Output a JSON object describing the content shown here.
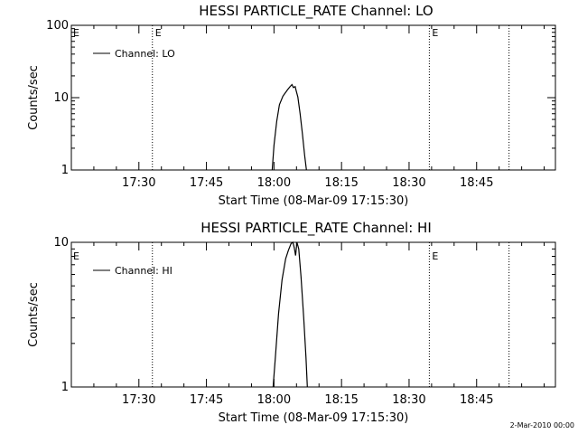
{
  "footer_text": "2-Mar-2010 00:00",
  "chart_data": [
    {
      "type": "line",
      "title": "HESSI PARTICLE_RATE Channel: LO",
      "xlabel": "Start Time (08-Mar-09 17:15:30)",
      "ylabel": "Counts/sec",
      "yscale": "log",
      "ylim": [
        1,
        100
      ],
      "ytick_values": [
        1,
        10,
        100
      ],
      "ytick_labels": [
        "1",
        "10",
        "100"
      ],
      "xlim_min_after_start": [
        0,
        107.5
      ],
      "xtick_min_after_start": [
        15,
        30,
        45,
        60,
        75,
        90
      ],
      "xtick_labels": [
        "17:30",
        "17:45",
        "18:00",
        "18:15",
        "18:30",
        "18:45"
      ],
      "legend": {
        "label": "Channel: LO",
        "placement": "top-left"
      },
      "series": [
        {
          "name": "Channel: LO",
          "x": [
            44.6,
            45.0,
            45.6,
            46.2,
            47.0,
            48.0,
            48.6,
            49.0,
            49.3,
            49.7,
            50.0,
            50.3,
            50.8,
            51.3,
            51.8,
            52.2
          ],
          "y": [
            1,
            2.2,
            4.7,
            8,
            10.5,
            12.8,
            14.3,
            15.2,
            13.8,
            14.2,
            12,
            10.2,
            6,
            3.2,
            1.6,
            1
          ]
        }
      ],
      "vlines": [
        {
          "x": 18,
          "style": "dotted",
          "label": "E"
        },
        {
          "x": 79.5,
          "style": "dotted",
          "label": "E"
        },
        {
          "x": 97.2,
          "style": "dotted",
          "label": ""
        }
      ],
      "edge_label": "E",
      "grid": false
    },
    {
      "type": "line",
      "title": "HESSI PARTICLE_RATE Channel: HI",
      "xlabel": "Start Time (08-Mar-09 17:15:30)",
      "ylabel": "Counts/sec",
      "yscale": "log",
      "ylim": [
        1,
        10
      ],
      "ytick_values": [
        1,
        10
      ],
      "ytick_labels": [
        "1",
        "10"
      ],
      "xlim_min_after_start": [
        0,
        107.5
      ],
      "xtick_min_after_start": [
        15,
        30,
        45,
        60,
        75,
        90
      ],
      "xtick_labels": [
        "17:30",
        "17:45",
        "18:00",
        "18:15",
        "18:30",
        "18:45"
      ],
      "legend": {
        "label": "Channel: HI",
        "placement": "top-left"
      },
      "series": [
        {
          "name": "Channel: HI",
          "x": [
            44.8,
            45.3,
            46.0,
            46.8,
            47.6,
            48.2,
            48.8,
            49.2,
            49.5,
            49.8,
            50.1,
            50.5,
            51.0,
            51.6,
            52.1,
            52.4
          ],
          "y": [
            1,
            1.6,
            3.2,
            5.5,
            7.7,
            8.8,
            9.8,
            10,
            9.2,
            8.1,
            10,
            9,
            5.8,
            3,
            1.6,
            1
          ]
        }
      ],
      "vlines": [
        {
          "x": 18,
          "style": "dotted",
          "label": ""
        },
        {
          "x": 79.5,
          "style": "dotted",
          "label": "E"
        },
        {
          "x": 97.2,
          "style": "dotted",
          "label": ""
        }
      ],
      "edge_label": "E",
      "grid": false
    }
  ]
}
